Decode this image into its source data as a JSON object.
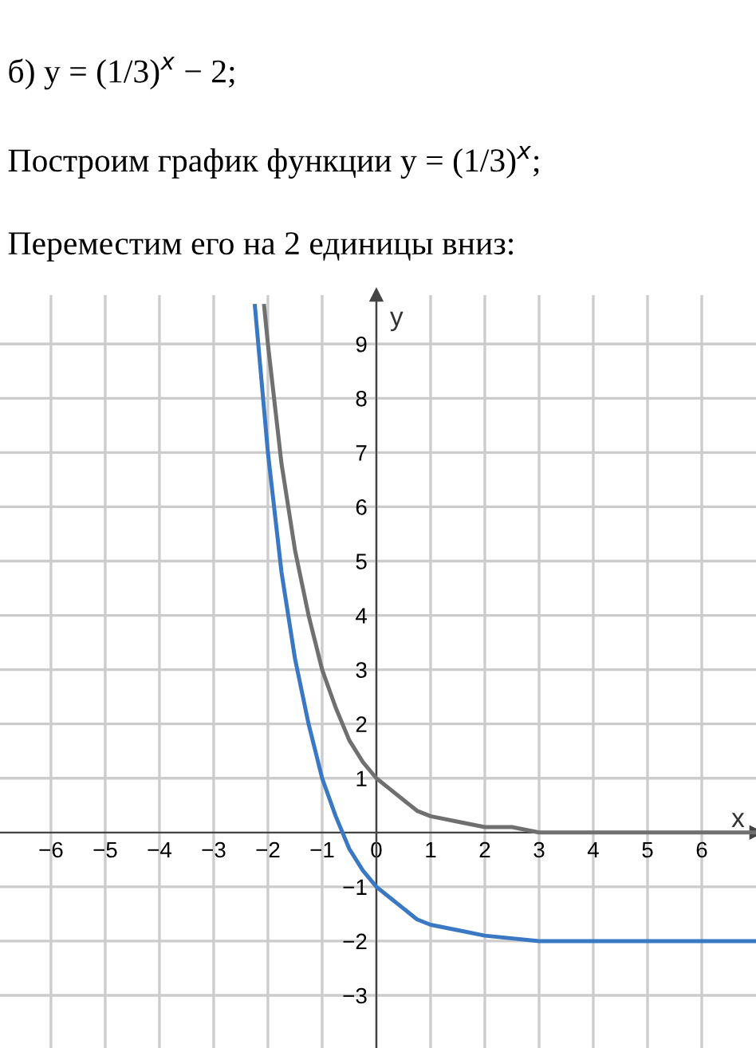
{
  "chart_data": {
    "type": "line",
    "title": "б) y = (1/3)$^{x}$ − 2;",
    "subtitle": "Построим график функции y = (1/3)$^{x}$;",
    "annotations": [
      "Переместим его на 2 единицы вниз:"
    ],
    "xlabel": "x",
    "ylabel": "y",
    "series": [
      {
        "color": "#707070",
        "x": [
          -2.07,
          -2,
          -1.75,
          -1.5,
          -1.25,
          -1,
          -0.75,
          -0.5,
          -0.25,
          0,
          0.25,
          0.5,
          0.75,
          1,
          1.5,
          2,
          2.5,
          3,
          4,
          5,
          6,
          7
        ],
        "values": [
          9.7,
          9,
          6.8,
          5.2,
          4.0,
          3,
          2.3,
          1.7,
          1.3,
          1,
          0.8,
          0.6,
          0.4,
          0.3,
          0.2,
          0.1,
          0.1,
          0.0,
          0.0,
          0.0,
          0.0,
          0.0
        ]
      },
      {
        "color": "#3a78c4",
        "x": [
          -2.24,
          -2,
          -1.75,
          -1.5,
          -1.25,
          -1,
          -0.75,
          -0.5,
          -0.25,
          0,
          0.25,
          0.5,
          0.75,
          1,
          1.5,
          2,
          3,
          4,
          5,
          6,
          7
        ],
        "values": [
          9.7,
          7,
          4.8,
          3.2,
          2.0,
          1,
          0.3,
          -0.3,
          -0.7,
          -1,
          -1.2,
          -1.4,
          -1.6,
          -1.7,
          -1.8,
          -1.9,
          -2.0,
          -2.0,
          -2.0,
          -2.0,
          -2.0
        ]
      }
    ],
    "xlim": [
      -6.94,
      7.0
    ],
    "ylim": [
      -3.97,
      9.9
    ],
    "xticks": [
      -6,
      -5,
      -4,
      -3,
      -2,
      -1,
      0,
      1,
      2,
      3,
      4,
      5,
      6
    ],
    "yticks": [
      -3,
      -2,
      -1,
      1,
      2,
      3,
      4,
      5,
      6,
      7,
      8,
      9
    ],
    "grid": true,
    "marker": "none",
    "line_style": "solid"
  }
}
